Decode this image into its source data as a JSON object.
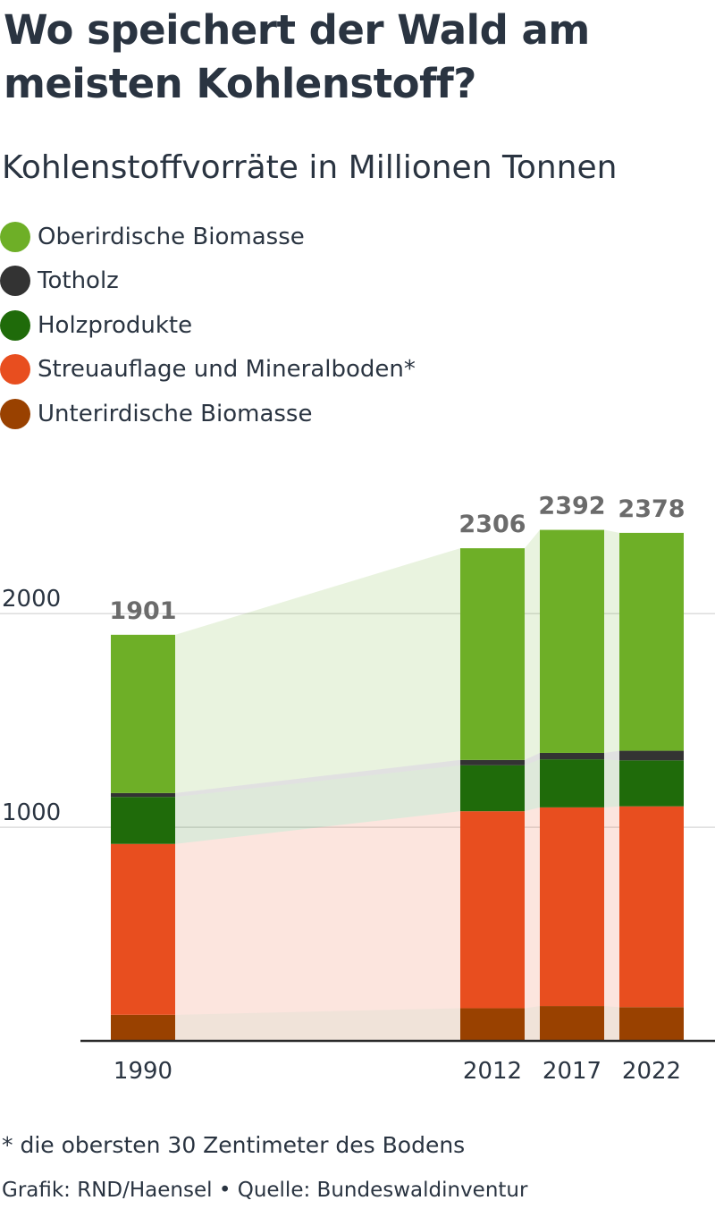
{
  "header": {
    "title": "Wo speichert der Wald am meisten Kohlenstoff?",
    "subtitle": "Kohlenstoffvorräte in Millionen Tonnen"
  },
  "legend": [
    {
      "label": "Oberirdische Biomasse",
      "color": "#6eaf27"
    },
    {
      "label": "Totholz",
      "color": "#333333"
    },
    {
      "label": "Holzprodukte",
      "color": "#1f6b0a"
    },
    {
      "label": "Streuauflage und Mineralboden*",
      "color": "#e84e1f"
    },
    {
      "label": "Unterirdische Biomasse",
      "color": "#994100"
    }
  ],
  "footer": {
    "footnote": "* die obersten 30 Zentimeter des Bodens",
    "credit": "Grafik: RND/Haensel • Quelle: Bundeswaldinventur"
  },
  "chart_data": {
    "type": "bar",
    "stacked": true,
    "categories": [
      "1990",
      "2012",
      "2017",
      "2022"
    ],
    "totals": [
      1901,
      2306,
      2392,
      2378
    ],
    "yticks": [
      1000,
      2000
    ],
    "ylim": [
      0,
      2500
    ],
    "grid": true,
    "series": [
      {
        "name": "Unterirdische Biomasse",
        "color": "#994100",
        "values": [
          122,
          153,
          163,
          158
        ]
      },
      {
        "name": "Streuauflage und Mineralboden*",
        "color": "#e84e1f",
        "values": [
          800,
          922,
          930,
          940
        ]
      },
      {
        "name": "Holzprodukte",
        "color": "#1f6b0a",
        "values": [
          220,
          215,
          225,
          215
        ]
      },
      {
        "name": "Totholz",
        "color": "#333333",
        "values": [
          18,
          25,
          30,
          45
        ]
      },
      {
        "name": "Oberirdische Biomasse",
        "color": "#6eaf27",
        "values": [
          741,
          991,
          1044,
          1020
        ]
      }
    ]
  }
}
